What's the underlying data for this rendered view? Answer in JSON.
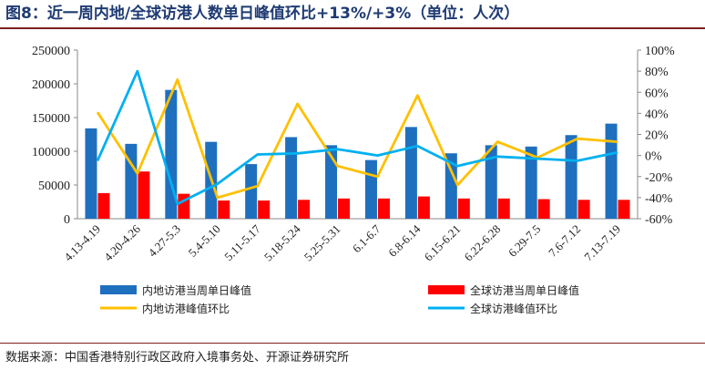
{
  "title": "图8：近一周内地/全球访港人数单日峰值环比+13%/+3%（单位：人次）",
  "source": "数据来源：中国香港特别行政区政府入境事务处、开源证券研究所",
  "chart_data": {
    "type": "bar",
    "categories": [
      "4.13-4.19",
      "4.20-4.26",
      "4.27-5.3",
      "5.4-5.10",
      "5.11-5.17",
      "5.18-5.24",
      "5.25-5.31",
      "6.1-6.7",
      "6.8-6.14",
      "6.15-6.21",
      "6.22-6.28",
      "6.29-7.5",
      "7.6-7.12",
      "7.13-7.19"
    ],
    "series": [
      {
        "name": "内地访港当周单日峰值",
        "kind": "bar",
        "axis": "left",
        "color": "#1f6fbf",
        "values": [
          134000,
          111000,
          191000,
          114000,
          81000,
          121000,
          109000,
          87000,
          136000,
          97000,
          109000,
          107000,
          124000,
          141000
        ]
      },
      {
        "name": "全球访港当周单日峰值",
        "kind": "bar",
        "axis": "left",
        "color": "#ff0000",
        "values": [
          38000,
          70000,
          37000,
          27000,
          27000,
          28000,
          30000,
          30000,
          33000,
          30000,
          30000,
          29000,
          28000,
          28000
        ]
      },
      {
        "name": "内地访港峰值环比",
        "kind": "line",
        "axis": "right",
        "color": "#ffc000",
        "values": [
          41,
          -17,
          72,
          -40,
          -29,
          49,
          -10,
          -20,
          57,
          -28,
          13,
          -2,
          16,
          13
        ]
      },
      {
        "name": "全球访港峰值环比",
        "kind": "line",
        "axis": "right",
        "color": "#00b0f0",
        "values": [
          -5,
          80,
          -46,
          -27,
          1,
          2,
          6,
          0,
          9,
          -10,
          -1,
          -3,
          -5,
          3
        ]
      }
    ],
    "left_axis": {
      "min": 0,
      "max": 250000,
      "step": 50000,
      "ticks": [
        "0",
        "50000",
        "100000",
        "150000",
        "200000",
        "250000"
      ]
    },
    "right_axis": {
      "min": -60,
      "max": 100,
      "step": 20,
      "ticks": [
        "-60%",
        "-40%",
        "-20%",
        "0%",
        "20%",
        "40%",
        "60%",
        "80%",
        "100%"
      ]
    },
    "legend_position": "bottom"
  }
}
